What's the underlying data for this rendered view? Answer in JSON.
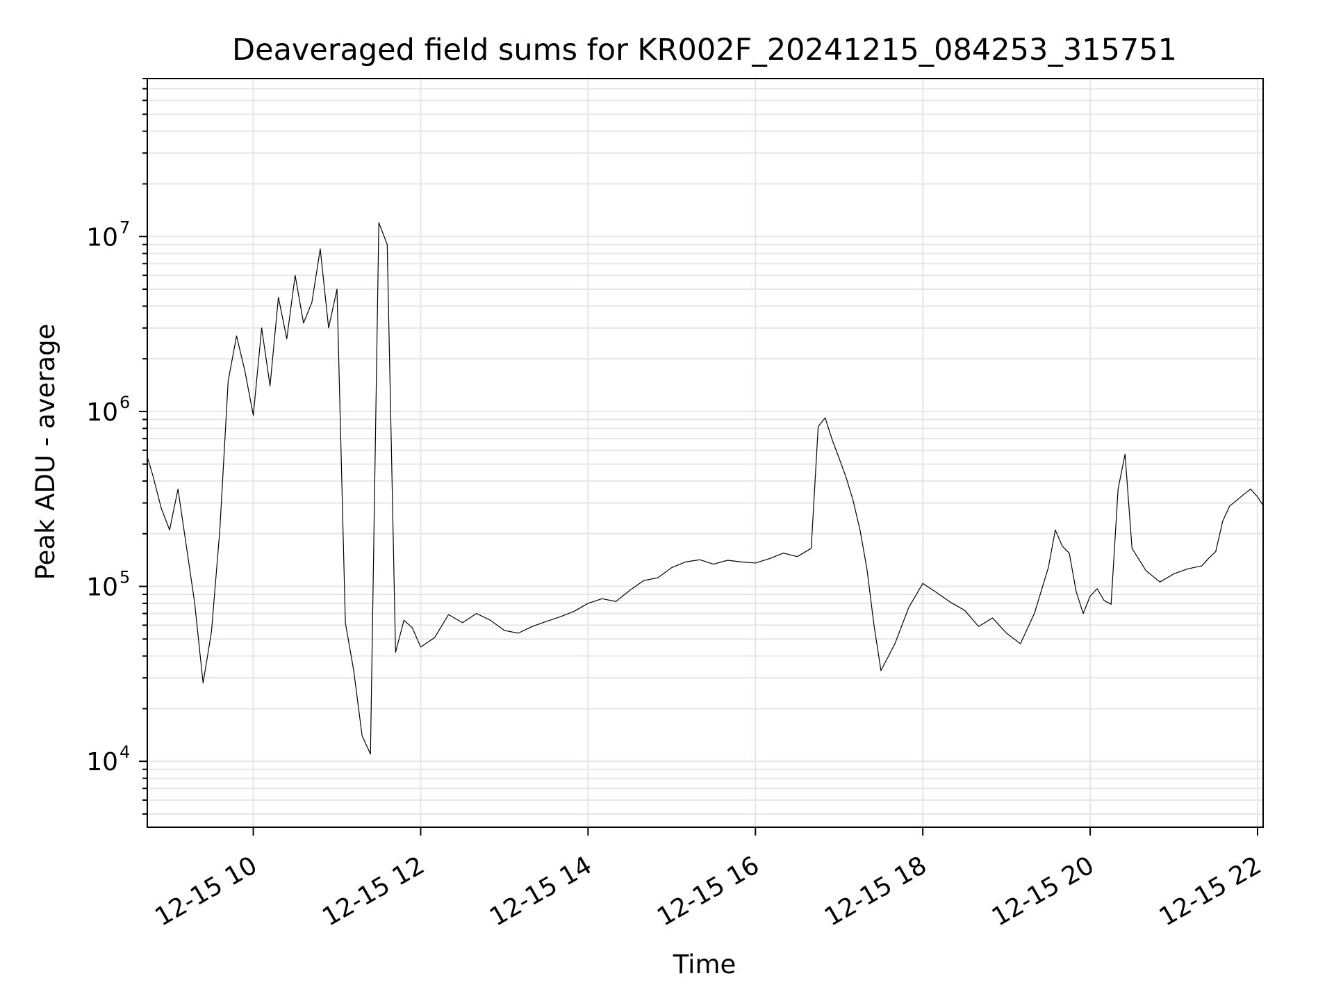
{
  "chart_data": {
    "type": "line",
    "title": "Deaveraged field sums for KR002F_20241215_084253_315751",
    "xlabel": "Time",
    "ylabel": "Peak ADU - average",
    "xscale": "time",
    "yscale": "log",
    "xlim": [
      "2024-12-15 08:44",
      "2024-12-15 22:04"
    ],
    "ylim": [
      4200,
      80000000
    ],
    "xticks": [
      "2024-12-15 10:00",
      "2024-12-15 12:00",
      "2024-12-15 14:00",
      "2024-12-15 16:00",
      "2024-12-15 18:00",
      "2024-12-15 20:00",
      "2024-12-15 22:00"
    ],
    "xtick_labels": [
      "12-15 10",
      "12-15 12",
      "12-15 14",
      "12-15 16",
      "12-15 18",
      "12-15 20",
      "12-15 22"
    ],
    "ytick_labels": [
      "10",
      "10",
      "10",
      "10"
    ],
    "ytick_exponents": [
      "4",
      "5",
      "6",
      "7"
    ],
    "yticks": [
      10000,
      100000,
      1000000,
      10000000
    ],
    "grid": true,
    "legend": "none",
    "series": [
      {
        "color": "#000000",
        "x": [
          "2024-12-15 08:44",
          "2024-12-15 08:48",
          "2024-12-15 08:54",
          "2024-12-15 09:00",
          "2024-12-15 09:06",
          "2024-12-15 09:12",
          "2024-12-15 09:18",
          "2024-12-15 09:24",
          "2024-12-15 09:30",
          "2024-12-15 09:36",
          "2024-12-15 09:42",
          "2024-12-15 09:48",
          "2024-12-15 09:54",
          "2024-12-15 10:00",
          "2024-12-15 10:06",
          "2024-12-15 10:12",
          "2024-12-15 10:18",
          "2024-12-15 10:24",
          "2024-12-15 10:30",
          "2024-12-15 10:36",
          "2024-12-15 10:42",
          "2024-12-15 10:48",
          "2024-12-15 10:54",
          "2024-12-15 11:00",
          "2024-12-15 11:06",
          "2024-12-15 11:12",
          "2024-12-15 11:18",
          "2024-12-15 11:24",
          "2024-12-15 11:30",
          "2024-12-15 11:36",
          "2024-12-15 11:42",
          "2024-12-15 11:48",
          "2024-12-15 11:54",
          "2024-12-15 12:00",
          "2024-12-15 12:10",
          "2024-12-15 12:20",
          "2024-12-15 12:30",
          "2024-12-15 12:40",
          "2024-12-15 12:50",
          "2024-12-15 13:00",
          "2024-12-15 13:10",
          "2024-12-15 13:20",
          "2024-12-15 13:30",
          "2024-12-15 13:40",
          "2024-12-15 13:50",
          "2024-12-15 14:00",
          "2024-12-15 14:10",
          "2024-12-15 14:20",
          "2024-12-15 14:30",
          "2024-12-15 14:40",
          "2024-12-15 14:50",
          "2024-12-15 15:00",
          "2024-12-15 15:10",
          "2024-12-15 15:20",
          "2024-12-15 15:30",
          "2024-12-15 15:40",
          "2024-12-15 15:50",
          "2024-12-15 16:00",
          "2024-12-15 16:10",
          "2024-12-15 16:20",
          "2024-12-15 16:30",
          "2024-12-15 16:40",
          "2024-12-15 16:45",
          "2024-12-15 16:50",
          "2024-12-15 16:55",
          "2024-12-15 17:00",
          "2024-12-15 17:05",
          "2024-12-15 17:10",
          "2024-12-15 17:15",
          "2024-12-15 17:20",
          "2024-12-15 17:25",
          "2024-12-15 17:30",
          "2024-12-15 17:40",
          "2024-12-15 17:50",
          "2024-12-15 18:00",
          "2024-12-15 18:10",
          "2024-12-15 18:20",
          "2024-12-15 18:30",
          "2024-12-15 18:40",
          "2024-12-15 18:50",
          "2024-12-15 19:00",
          "2024-12-15 19:10",
          "2024-12-15 19:20",
          "2024-12-15 19:30",
          "2024-12-15 19:35",
          "2024-12-15 19:40",
          "2024-12-15 19:45",
          "2024-12-15 19:50",
          "2024-12-15 19:55",
          "2024-12-15 20:00",
          "2024-12-15 20:05",
          "2024-12-15 20:10",
          "2024-12-15 20:15",
          "2024-12-15 20:20",
          "2024-12-15 20:25",
          "2024-12-15 20:30",
          "2024-12-15 20:40",
          "2024-12-15 20:50",
          "2024-12-15 21:00",
          "2024-12-15 21:10",
          "2024-12-15 21:20",
          "2024-12-15 21:25",
          "2024-12-15 21:30",
          "2024-12-15 21:35",
          "2024-12-15 21:40",
          "2024-12-15 21:45",
          "2024-12-15 21:50",
          "2024-12-15 21:55",
          "2024-12-15 22:00",
          "2024-12-15 22:04"
        ],
        "values": [
          550000,
          430000,
          280000,
          210000,
          360000,
          170000,
          80000,
          28000,
          55000,
          210000,
          1500000,
          2700000,
          1700000,
          950000,
          3000000,
          1400000,
          4500000,
          2600000,
          6000000,
          3200000,
          4200000,
          8500000,
          3000000,
          5000000,
          62000,
          33000,
          14000,
          11000,
          12000000,
          9000000,
          42000,
          64000,
          58000,
          45000,
          51000,
          69000,
          62000,
          70000,
          64000,
          56000,
          54000,
          59000,
          63000,
          67000,
          72000,
          80000,
          85000,
          82000,
          95000,
          108000,
          112000,
          128000,
          138000,
          142000,
          134000,
          141000,
          138000,
          136000,
          144000,
          155000,
          148000,
          165000,
          820000,
          920000,
          690000,
          540000,
          420000,
          310000,
          210000,
          125000,
          60000,
          33000,
          47000,
          76000,
          104000,
          92000,
          81000,
          73000,
          59000,
          66000,
          54000,
          47000,
          70000,
          128000,
          210000,
          170000,
          155000,
          93000,
          70000,
          88000,
          97000,
          83000,
          79000,
          360000,
          570000,
          165000,
          123000,
          106000,
          118000,
          126000,
          131000,
          145000,
          158000,
          236000,
          288000,
          310000,
          335000,
          360000,
          325000,
          290000
        ]
      }
    ]
  }
}
